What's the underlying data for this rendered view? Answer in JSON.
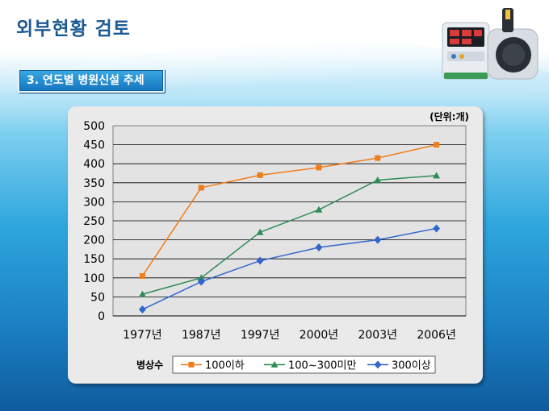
{
  "header": {
    "title": "외부현황 검토"
  },
  "section": {
    "label": "3. 연도별 병원신설 추세"
  },
  "colors": {
    "title": "#1d5b93",
    "series_orange": "#f07d1b",
    "series_green": "#2e8b57",
    "series_blue": "#3366cc"
  },
  "chart_data": {
    "type": "line",
    "unit_label": "(단위:개)",
    "categories": [
      "1977년",
      "1987년",
      "1997년",
      "2000년",
      "2003년",
      "2006년"
    ],
    "ylim": [
      0,
      500
    ],
    "yticks": [
      0,
      50,
      100,
      150,
      200,
      250,
      300,
      350,
      400,
      450,
      500
    ],
    "grid": true,
    "legend_title": "병상수",
    "legend_position": "bottom",
    "series": [
      {
        "name": "100이하",
        "color": "#f07d1b",
        "marker": "square",
        "values": [
          105,
          337,
          370,
          390,
          415,
          450
        ]
      },
      {
        "name": "100~300미만",
        "color": "#2e8b57",
        "marker": "triangle",
        "values": [
          57,
          100,
          220,
          279,
          357,
          369
        ]
      },
      {
        "name": "300이상",
        "color": "#3366cc",
        "marker": "diamond",
        "values": [
          17,
          90,
          145,
          180,
          200,
          230
        ]
      }
    ]
  }
}
